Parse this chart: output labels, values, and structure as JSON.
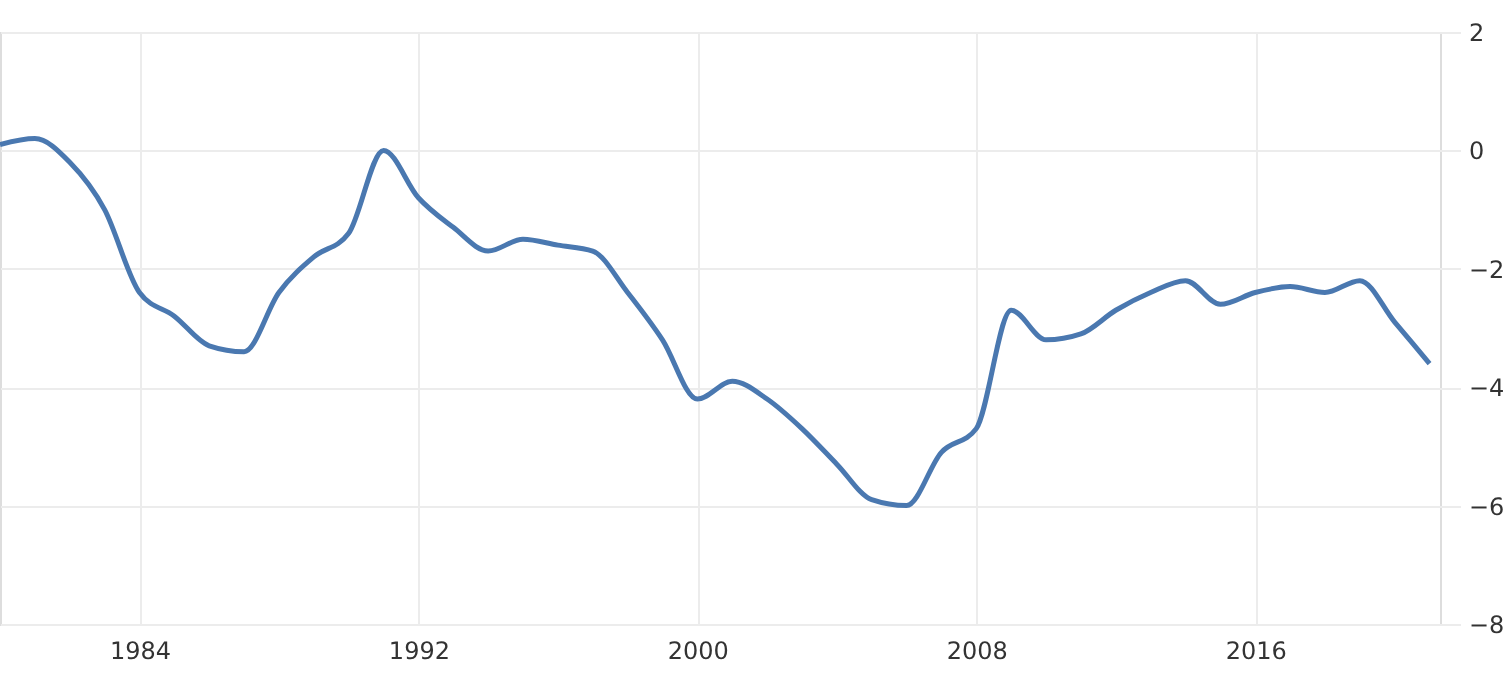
{
  "chart_data": {
    "type": "line",
    "x": [
      1980,
      1981,
      1982,
      1983,
      1984,
      1985,
      1986,
      1987,
      1988,
      1989,
      1990,
      1991,
      1992,
      1993,
      1994,
      1995,
      1996,
      1997,
      1998,
      1999,
      2000,
      2001,
      2002,
      2003,
      2004,
      2005,
      2006,
      2007,
      2008,
      2009,
      2010,
      2011,
      2012,
      2013,
      2014,
      2015,
      2016,
      2017,
      2018,
      2019,
      2020,
      2021
    ],
    "series": [
      {
        "color": "#4a78b0",
        "values": [
          0.1,
          0.2,
          -0.2,
          -1.0,
          -2.4,
          -2.8,
          -3.3,
          -3.4,
          -2.4,
          -1.8,
          -1.4,
          0.0,
          -0.8,
          -1.3,
          -1.7,
          -1.5,
          -1.6,
          -1.7,
          -2.4,
          -3.2,
          -4.2,
          -3.9,
          -4.2,
          -4.7,
          -5.3,
          -5.9,
          -6.0,
          -5.1,
          -4.7,
          -2.7,
          -3.2,
          -3.1,
          -2.7,
          -2.4,
          -2.2,
          -2.6,
          -2.4,
          -2.3,
          -2.4,
          -2.2,
          -2.9,
          -3.6
        ]
      }
    ],
    "xlim": [
      1980,
      2021.3
    ],
    "xticks": [
      1984,
      1992,
      2000,
      2008,
      2016
    ],
    "ylim": [
      -8,
      2
    ],
    "yticks": [
      -8,
      -6,
      -4,
      -2,
      0,
      2
    ],
    "grid": true,
    "marker": "none",
    "line_style": "solid"
  }
}
